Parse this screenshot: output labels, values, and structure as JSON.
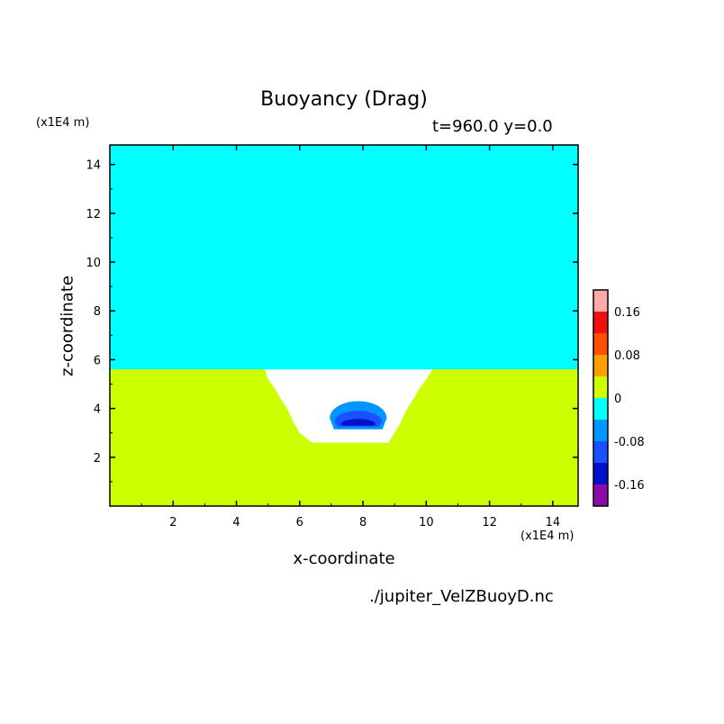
{
  "chart_data": {
    "type": "heatmap",
    "title": "Buoyancy (Drag)",
    "info_label": "t=960.0 y=0.0",
    "xlabel": "x-coordinate",
    "ylabel": "z-coordinate",
    "x_unit_label": "(x1E4 m)",
    "y_unit_label": "(x1E4 m)",
    "footer": "./jupiter_VelZBuoyD.nc",
    "xlim": [
      0,
      14.8
    ],
    "ylim": [
      0,
      14.8
    ],
    "x_ticks": [
      2,
      4,
      6,
      8,
      10,
      12,
      14
    ],
    "y_ticks": [
      2,
      4,
      6,
      8,
      10,
      12,
      14
    ],
    "colorbar": {
      "levels": [
        {
          "range": [
            -0.2,
            -0.16
          ],
          "color": "#8c0ca8"
        },
        {
          "range": [
            -0.16,
            -0.12
          ],
          "color": "#0010cc"
        },
        {
          "range": [
            -0.12,
            -0.08
          ],
          "color": "#1a50ff"
        },
        {
          "range": [
            -0.08,
            -0.04
          ],
          "color": "#0096ff"
        },
        {
          "range": [
            -0.04,
            0
          ],
          "color": "#00ffff"
        },
        {
          "range": [
            0,
            0.04
          ],
          "color": "#ccff00"
        },
        {
          "range": [
            0.04,
            0.08
          ],
          "color": "#ffa000"
        },
        {
          "range": [
            0.08,
            0.12
          ],
          "color": "#ff5000"
        },
        {
          "range": [
            0.12,
            0.16
          ],
          "color": "#f01010"
        },
        {
          "range": [
            0.16,
            0.2
          ],
          "color": "#ffaaaa"
        }
      ],
      "tick_labels": [
        {
          "value": 0.16,
          "label": "0.16"
        },
        {
          "value": 0.08,
          "label": "0.08"
        },
        {
          "value": 0,
          "label": "0"
        },
        {
          "value": -0.08,
          "label": "-0.08"
        },
        {
          "value": -0.16,
          "label": "-0.16"
        }
      ]
    },
    "regions": [
      {
        "name": "upper-field",
        "value_range": [
          -0.04,
          0
        ],
        "color": "#00ffff",
        "polygon": [
          [
            0,
            5.6
          ],
          [
            14.8,
            5.6
          ],
          [
            14.8,
            14.8
          ],
          [
            0,
            14.8
          ]
        ]
      },
      {
        "name": "lower-field",
        "value_range": [
          0,
          0.04
        ],
        "color": "#ccff00",
        "polygon": [
          [
            0,
            0
          ],
          [
            14.8,
            0
          ],
          [
            14.8,
            5.6
          ],
          [
            10.2,
            5.6
          ],
          [
            10.0,
            5.2
          ],
          [
            9.8,
            4.85
          ],
          [
            9.6,
            4.4
          ],
          [
            9.4,
            4.0
          ],
          [
            9.2,
            3.45
          ],
          [
            9.0,
            3.0
          ],
          [
            8.8,
            2.6
          ],
          [
            6.4,
            2.6
          ],
          [
            6.0,
            3.0
          ],
          [
            5.8,
            3.45
          ],
          [
            5.6,
            4.0
          ],
          [
            5.4,
            4.4
          ],
          [
            5.2,
            4.85
          ],
          [
            5.0,
            5.2
          ],
          [
            4.9,
            5.6
          ],
          [
            0,
            5.6
          ]
        ]
      },
      {
        "name": "plume-outer",
        "value_range": [
          -0.08,
          -0.04
        ],
        "color": "#0096ff",
        "ellipse": {
          "cx": 7.85,
          "cy": 3.6,
          "rx": 0.9,
          "ry": 0.7,
          "base": 3.15
        }
      },
      {
        "name": "plume-middle",
        "value_range": [
          -0.12,
          -0.08
        ],
        "color": "#1a50ff",
        "ellipse": {
          "cx": 7.85,
          "cy": 3.45,
          "rx": 0.75,
          "ry": 0.45,
          "base": 3.25
        }
      },
      {
        "name": "plume-core",
        "value_range": [
          -0.16,
          -0.12
        ],
        "color": "#0010cc",
        "ellipse": {
          "cx": 7.85,
          "cy": 3.35,
          "rx": 0.55,
          "ry": 0.22,
          "base": 3.3
        }
      }
    ]
  }
}
